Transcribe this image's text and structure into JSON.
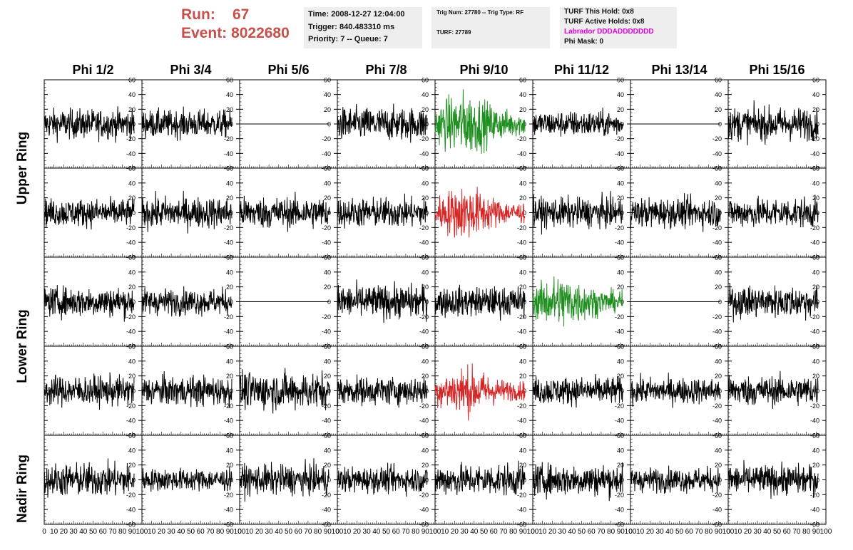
{
  "header": {
    "run_label": "Run:",
    "run_value": "67",
    "event_label": "Event:",
    "event_value": "8022680",
    "time": "Time: 2008-12-27 12:04:00",
    "trigger": "Trigger: 840.483310 ms",
    "priority": "Priority: 7 -- Queue: 7",
    "trig_num": "Trig Num: 27780 -- Trig Type: RF",
    "turf": "TURF: 27789",
    "turf_this_hold": "TURF This Hold: 0x8",
    "turf_active_holds": "TURF Active Holds: 0x8",
    "labrador": "Labrador DDDADDDDDDD",
    "phi_mask": "Phi Mask: 0"
  },
  "columns": [
    "Phi 1/2",
    "Phi 3/4",
    "Phi 5/6",
    "Phi 7/8",
    "Phi 9/10",
    "Phi 11/12",
    "Phi 13/14",
    "Phi 15/16"
  ],
  "ring_labels": [
    "Upper Ring",
    "Lower Ring",
    "Nadir Ring"
  ],
  "colors": {
    "accent_red": "#c9504a",
    "magenta": "#e000e0",
    "trace": "#000000",
    "green": "#1f8f1f",
    "red": "#d42828",
    "box_bg": "#eeeeee"
  },
  "chart_data": {
    "type": "line",
    "description_rows": 5,
    "description_cols": 8,
    "xlim": [
      0,
      100
    ],
    "ylim": [
      -60,
      60
    ],
    "yticks": [
      -60,
      -40,
      -20,
      0,
      20,
      40,
      60
    ],
    "ytick_labels": [
      "-60",
      "-40",
      "-20",
      "0",
      "20",
      "40",
      "60"
    ],
    "xtick_labels": [
      "0",
      "10",
      "20",
      "30",
      "40",
      "50",
      "60",
      "70",
      "80",
      "90",
      "100"
    ],
    "bottom_axis_label_text": "0 10 20 30 40 50 60 70 80 90 100",
    "panels": {
      "amplitude": [
        [
          16,
          15,
          0,
          18,
          24,
          14,
          0,
          18
        ],
        [
          15,
          17,
          17,
          16,
          20,
          16,
          16,
          16
        ],
        [
          16,
          14,
          0,
          18,
          16,
          20,
          0,
          17
        ],
        [
          16,
          16,
          20,
          15,
          18,
          15,
          14,
          16
        ],
        [
          18,
          12,
          16,
          14,
          17,
          17,
          13,
          16
        ]
      ],
      "color": [
        [
          "black",
          "black",
          "black",
          "black",
          "green",
          "black",
          "black",
          "black"
        ],
        [
          "black",
          "black",
          "black",
          "black",
          "red",
          "black",
          "black",
          "black"
        ],
        [
          "black",
          "black",
          "black",
          "black",
          "black",
          "green",
          "black",
          "black"
        ],
        [
          "black",
          "black",
          "black",
          "black",
          "red",
          "black",
          "black",
          "black"
        ],
        [
          "black",
          "black",
          "black",
          "black",
          "black",
          "black",
          "black",
          "black"
        ]
      ],
      "trace_x_range": [
        0,
        92
      ],
      "flat_panels_note": "Phi 5/6 and Phi 13/14 show flat traces at 0 in two rows"
    }
  }
}
